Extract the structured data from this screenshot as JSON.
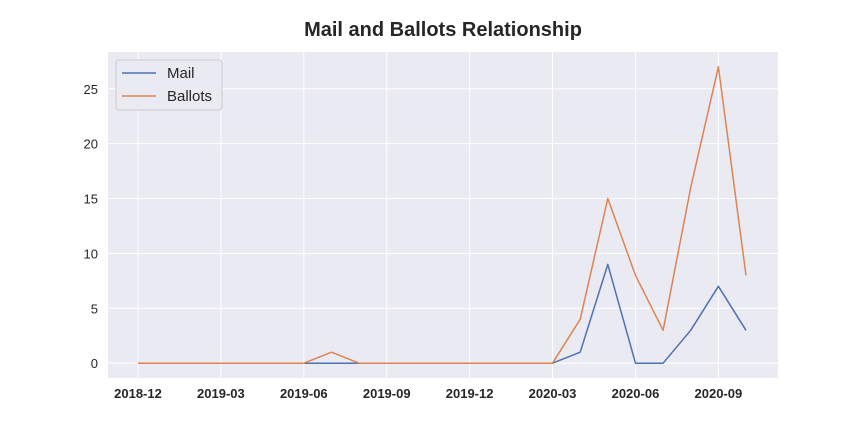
{
  "chart_data": {
    "type": "line",
    "title": "Mail and Ballots Relationship",
    "xlabel": "",
    "ylabel": "",
    "x": [
      "2018-12",
      "2019-01",
      "2019-02",
      "2019-03",
      "2019-04",
      "2019-05",
      "2019-06",
      "2019-07",
      "2019-08",
      "2019-09",
      "2019-10",
      "2019-11",
      "2019-12",
      "2020-01",
      "2020-02",
      "2020-03",
      "2020-04",
      "2020-05",
      "2020-06",
      "2020-07",
      "2020-08",
      "2020-09",
      "2020-10"
    ],
    "x_tick_labels": [
      "2018-12",
      "2019-03",
      "2019-06",
      "2019-09",
      "2019-12",
      "2020-03",
      "2020-06",
      "2020-09"
    ],
    "ylim": [
      -1.35,
      28.35
    ],
    "y_ticks": [
      0,
      5,
      10,
      15,
      20,
      25
    ],
    "grid": true,
    "legend_position": "upper-left",
    "series": [
      {
        "name": "Mail",
        "color": "#4c72b0",
        "values": [
          0,
          0,
          0,
          0,
          0,
          0,
          0,
          0,
          0,
          0,
          0,
          0,
          0,
          0,
          0,
          0,
          1,
          9,
          0,
          0,
          3,
          7,
          3
        ]
      },
      {
        "name": "Ballots",
        "color": "#dd8452",
        "values": [
          0,
          0,
          0,
          0,
          0,
          0,
          0,
          1,
          0,
          0,
          0,
          0,
          0,
          0,
          0,
          0,
          4,
          15,
          8,
          3,
          16,
          27,
          8
        ]
      }
    ]
  }
}
